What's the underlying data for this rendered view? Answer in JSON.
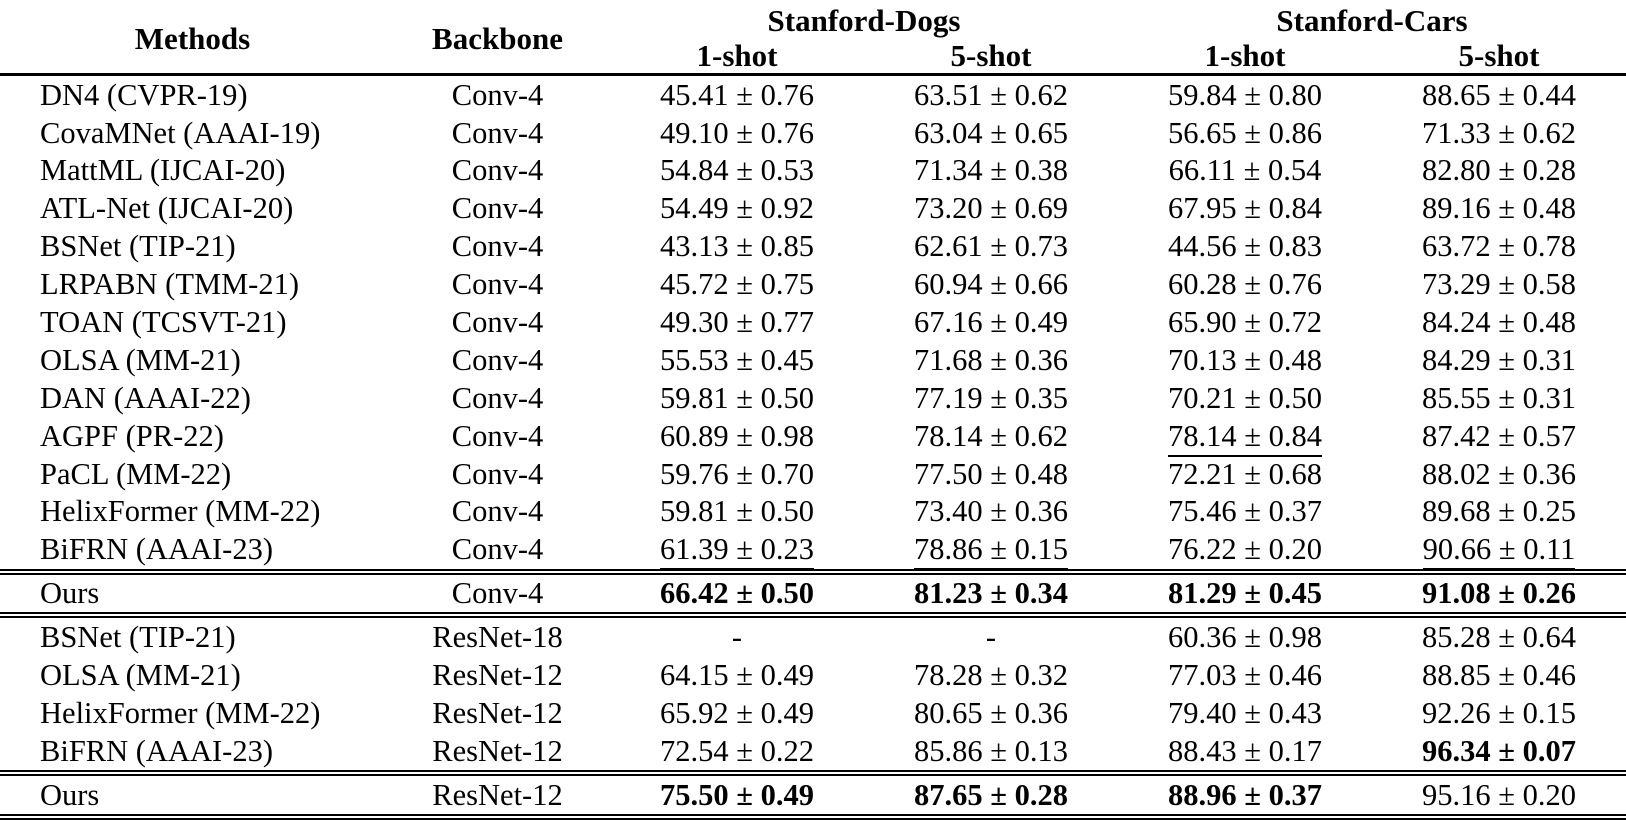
{
  "header": {
    "methods": "Methods",
    "backbone": "Backbone",
    "groups": [
      {
        "label": "Stanford-Dogs"
      },
      {
        "label": "Stanford-Cars"
      }
    ],
    "subheaders": [
      "1-shot",
      "5-shot",
      "1-shot",
      "5-shot"
    ]
  },
  "rows": [
    {
      "method": "DN4 (CVPR-19)",
      "backbone": "Conv-4",
      "values": [
        "45.41 ± 0.76",
        "63.51 ± 0.62",
        "59.84 ± 0.80",
        "88.65 ± 0.44"
      ],
      "styles": [
        "normal",
        "normal",
        "normal",
        "normal"
      ],
      "separator_above": false
    },
    {
      "method": "CovaMNet (AAAI-19)",
      "backbone": "Conv-4",
      "values": [
        "49.10 ± 0.76",
        "63.04 ± 0.65",
        "56.65 ± 0.86",
        "71.33 ± 0.62"
      ],
      "styles": [
        "normal",
        "normal",
        "normal",
        "normal"
      ],
      "separator_above": false
    },
    {
      "method": "MattML (IJCAI-20)",
      "backbone": "Conv-4",
      "values": [
        "54.84 ± 0.53",
        "71.34 ± 0.38",
        "66.11 ± 0.54",
        "82.80 ± 0.28"
      ],
      "styles": [
        "normal",
        "normal",
        "normal",
        "normal"
      ],
      "separator_above": false
    },
    {
      "method": "ATL-Net (IJCAI-20)",
      "backbone": "Conv-4",
      "values": [
        "54.49 ± 0.92",
        "73.20 ± 0.69",
        "67.95 ± 0.84",
        "89.16 ± 0.48"
      ],
      "styles": [
        "normal",
        "normal",
        "normal",
        "normal"
      ],
      "separator_above": false
    },
    {
      "method": "BSNet (TIP-21)",
      "backbone": "Conv-4",
      "values": [
        "43.13 ± 0.85",
        "62.61 ± 0.73",
        "44.56 ± 0.83",
        "63.72 ± 0.78"
      ],
      "styles": [
        "normal",
        "normal",
        "normal",
        "normal"
      ],
      "separator_above": false
    },
    {
      "method": "LRPABN (TMM-21)",
      "backbone": "Conv-4",
      "values": [
        "45.72 ± 0.75",
        "60.94 ± 0.66",
        "60.28 ± 0.76",
        "73.29 ± 0.58"
      ],
      "styles": [
        "normal",
        "normal",
        "normal",
        "normal"
      ],
      "separator_above": false
    },
    {
      "method": "TOAN (TCSVT-21)",
      "backbone": "Conv-4",
      "values": [
        "49.30 ± 0.77",
        "67.16 ± 0.49",
        "65.90 ± 0.72",
        "84.24 ± 0.48"
      ],
      "styles": [
        "normal",
        "normal",
        "normal",
        "normal"
      ],
      "separator_above": false
    },
    {
      "method": "OLSA (MM-21)",
      "backbone": "Conv-4",
      "values": [
        "55.53 ± 0.45",
        "71.68 ± 0.36",
        "70.13 ± 0.48",
        "84.29 ± 0.31"
      ],
      "styles": [
        "normal",
        "normal",
        "normal",
        "normal"
      ],
      "separator_above": false
    },
    {
      "method": "DAN (AAAI-22)",
      "backbone": "Conv-4",
      "values": [
        "59.81 ± 0.50",
        "77.19 ± 0.35",
        "70.21 ± 0.50",
        "85.55 ± 0.31"
      ],
      "styles": [
        "normal",
        "normal",
        "normal",
        "normal"
      ],
      "separator_above": false
    },
    {
      "method": "AGPF (PR-22)",
      "backbone": "Conv-4",
      "values": [
        "60.89 ± 0.98",
        "78.14 ± 0.62",
        "78.14 ± 0.84",
        "87.42 ± 0.57"
      ],
      "styles": [
        "normal",
        "normal",
        "underline",
        "normal"
      ],
      "separator_above": false
    },
    {
      "method": "PaCL (MM-22)",
      "backbone": "Conv-4",
      "values": [
        "59.76 ± 0.70",
        "77.50 ± 0.48",
        "72.21 ± 0.68",
        "88.02 ± 0.36"
      ],
      "styles": [
        "normal",
        "normal",
        "normal",
        "normal"
      ],
      "separator_above": false
    },
    {
      "method": "HelixFormer (MM-22)",
      "backbone": "Conv-4",
      "values": [
        "59.81 ± 0.50",
        "73.40 ± 0.36",
        "75.46 ± 0.37",
        "89.68 ± 0.25"
      ],
      "styles": [
        "normal",
        "normal",
        "normal",
        "normal"
      ],
      "separator_above": false
    },
    {
      "method": "BiFRN (AAAI-23)",
      "backbone": "Conv-4",
      "values": [
        "61.39 ± 0.23",
        "78.86 ± 0.15",
        "76.22 ± 0.20",
        "90.66 ± 0.11"
      ],
      "styles": [
        "underline",
        "underline",
        "normal",
        "underline"
      ],
      "separator_above": false
    },
    {
      "method": "Ours",
      "backbone": "Conv-4",
      "values": [
        "66.42 ± 0.50",
        "81.23 ± 0.34",
        "81.29 ± 0.45",
        "91.08 ± 0.26"
      ],
      "styles": [
        "bold",
        "bold",
        "bold",
        "bold"
      ],
      "separator_above": true
    },
    {
      "method": "BSNet (TIP-21)",
      "backbone": "ResNet-18",
      "values": [
        "-",
        "-",
        "60.36 ± 0.98",
        "85.28 ± 0.64"
      ],
      "styles": [
        "normal",
        "normal",
        "normal",
        "normal"
      ],
      "separator_above": true
    },
    {
      "method": "OLSA (MM-21)",
      "backbone": "ResNet-12",
      "values": [
        "64.15 ± 0.49",
        "78.28 ± 0.32",
        "77.03 ± 0.46",
        "88.85 ± 0.46"
      ],
      "styles": [
        "normal",
        "normal",
        "normal",
        "normal"
      ],
      "separator_above": false
    },
    {
      "method": "HelixFormer (MM-22)",
      "backbone": "ResNet-12",
      "values": [
        "65.92 ± 0.49",
        "80.65 ± 0.36",
        "79.40 ± 0.43",
        "92.26 ± 0.15"
      ],
      "styles": [
        "normal",
        "normal",
        "normal",
        "normal"
      ],
      "separator_above": false
    },
    {
      "method": "BiFRN (AAAI-23)",
      "backbone": "ResNet-12",
      "values": [
        "72.54 ± 0.22",
        "85.86 ± 0.13",
        "88.43 ± 0.17",
        "96.34 ± 0.07"
      ],
      "styles": [
        "underline",
        "underline",
        "underline",
        "bold"
      ],
      "separator_above": false
    },
    {
      "method": "Ours",
      "backbone": "ResNet-12",
      "values": [
        "75.50 ± 0.49",
        "87.65 ± 0.28",
        "88.96 ± 0.37",
        "95.16 ± 0.20"
      ],
      "styles": [
        "bold",
        "bold",
        "bold",
        "underline"
      ],
      "separator_above": true
    }
  ]
}
